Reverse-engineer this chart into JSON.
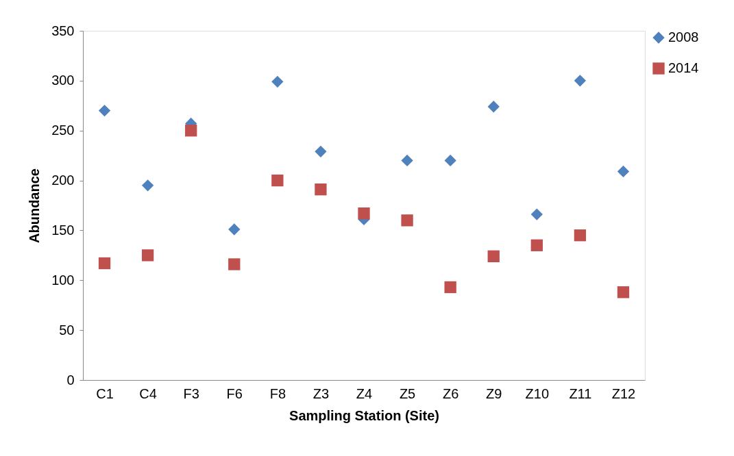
{
  "chart_data": {
    "type": "scatter",
    "xlabel": "Sampling Station (Site)",
    "ylabel": "Abundance",
    "categories": [
      "C1",
      "C4",
      "F3",
      "F6",
      "F8",
      "Z3",
      "Z4",
      "Z5",
      "Z6",
      "Z9",
      "Z10",
      "Z11",
      "Z12"
    ],
    "series": [
      {
        "name": "2008",
        "color": "#4f81bd",
        "marker": "diamond",
        "values": [
          270,
          195,
          257,
          151,
          299,
          229,
          161,
          220,
          220,
          274,
          166,
          300,
          209
        ]
      },
      {
        "name": "2014",
        "color": "#c0504d",
        "marker": "square",
        "values": [
          117,
          125,
          250,
          116,
          200,
          191,
          167,
          160,
          93,
          124,
          135,
          145,
          88
        ]
      }
    ],
    "ylim": [
      0,
      350
    ],
    "yticks": [
      0,
      50,
      100,
      150,
      200,
      250,
      300,
      350
    ],
    "grid": false,
    "legend": "right"
  }
}
